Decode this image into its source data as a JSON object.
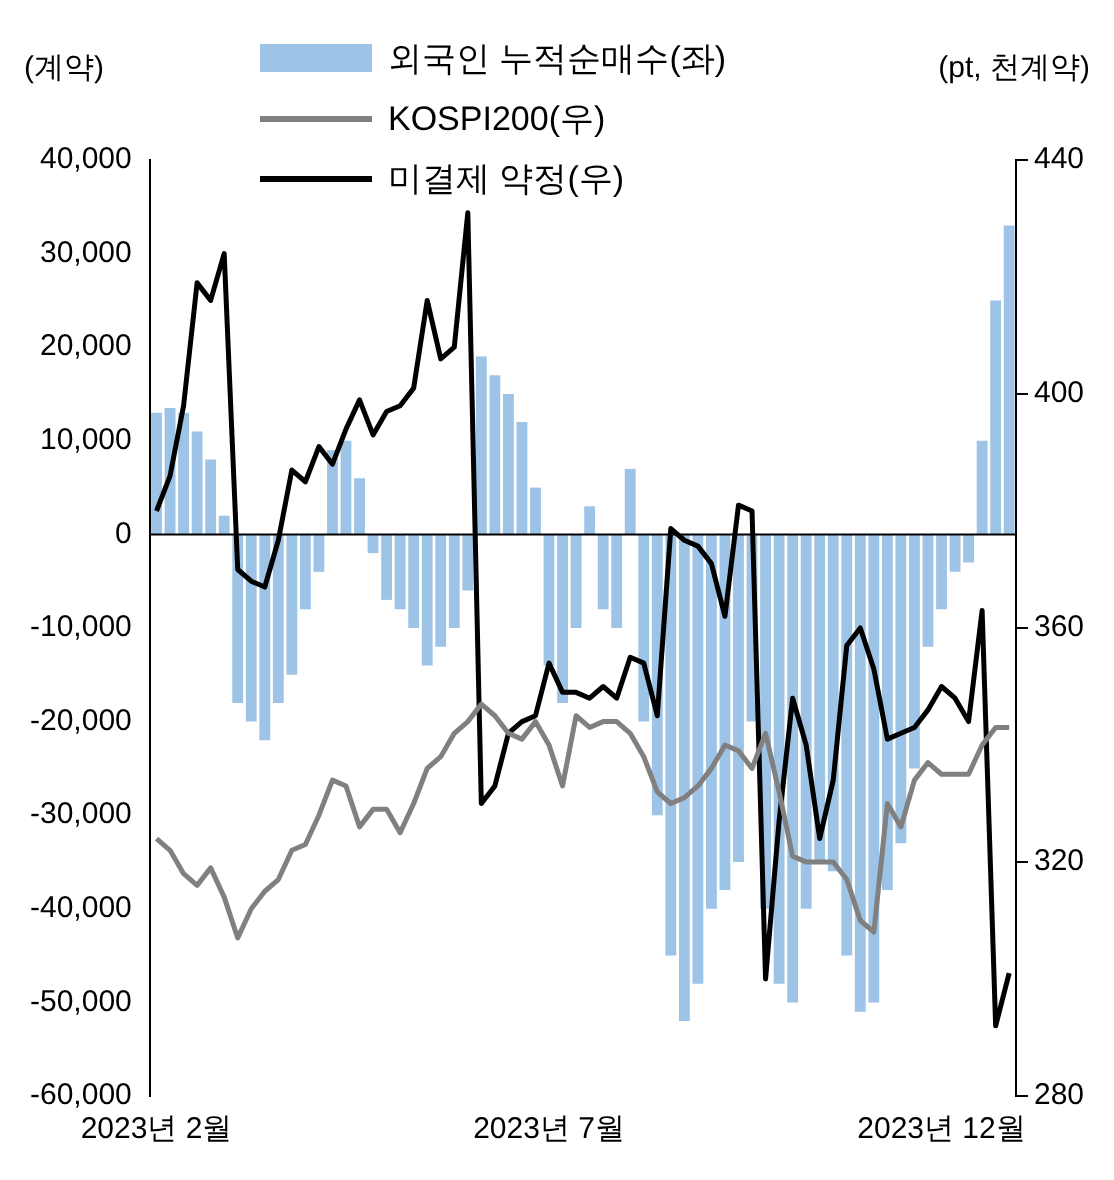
{
  "chart_data": {
    "type": "bar",
    "ylabel": "(계약)",
    "y2label": "(pt, 천계약)",
    "categories": [
      "2023년 2월",
      null,
      null,
      null,
      null,
      null,
      null,
      null,
      null,
      null,
      null,
      null,
      null,
      null,
      null,
      null,
      null,
      null,
      null,
      null,
      null,
      null,
      null,
      null,
      null,
      null,
      null,
      null,
      null,
      "2023년 7월",
      null,
      null,
      null,
      null,
      null,
      null,
      null,
      null,
      null,
      null,
      null,
      null,
      null,
      null,
      null,
      null,
      null,
      null,
      null,
      null,
      null,
      null,
      null,
      null,
      null,
      null,
      null,
      null,
      "2023년 12월",
      null,
      null,
      null,
      null,
      null
    ],
    "series": [
      {
        "name": "외국인 누적순매수(좌)",
        "color": "#9dc3e6",
        "values": [
          13000,
          13500,
          13000,
          11000,
          8000,
          2000,
          -18000,
          -20000,
          -22000,
          -18000,
          -15000,
          -8000,
          -4000,
          9000,
          10000,
          6000,
          -2000,
          -7000,
          -8000,
          -10000,
          -14000,
          -12000,
          -10000,
          -6000,
          19000,
          17000,
          15000,
          12000,
          5000,
          -14000,
          -18000,
          -10000,
          3000,
          -8000,
          -10000,
          7000,
          -20000,
          -30000,
          -45000,
          -52000,
          -48000,
          -40000,
          -38000,
          -35000,
          -20000,
          -40000,
          -48000,
          -50000,
          -40000,
          -35000,
          -36000,
          -45000,
          -51000,
          -50000,
          -38000,
          -33000,
          -25000,
          -12000,
          -8000,
          -4000,
          -3000,
          10000,
          25000,
          33000
        ]
      },
      {
        "name": "KOSPI200(우)",
        "type": "line",
        "axis": "y2",
        "color": "#808080",
        "values": [
          324,
          322,
          318,
          316,
          319,
          314,
          307,
          312,
          315,
          317,
          322,
          323,
          328,
          334,
          333,
          326,
          329,
          329,
          325,
          330,
          336,
          338,
          342,
          344,
          347,
          345,
          342,
          341,
          344,
          340,
          333,
          345,
          343,
          344,
          344,
          342,
          338,
          332,
          330,
          331,
          333,
          336,
          340,
          339,
          336,
          342,
          332,
          321,
          320,
          320,
          320,
          317,
          310,
          308,
          330,
          326,
          334,
          337,
          335,
          335,
          335,
          340,
          343,
          343
        ]
      },
      {
        "name": "미결제 약정(우)",
        "type": "line",
        "axis": "y2",
        "color": "#000000",
        "values": [
          380,
          386,
          398,
          419,
          416,
          424,
          370,
          368,
          367,
          375,
          387,
          385,
          391,
          388,
          394,
          399,
          393,
          397,
          398,
          401,
          416,
          406,
          408,
          431,
          330,
          333,
          342,
          344,
          345,
          354,
          349,
          349,
          348,
          350,
          348,
          355,
          354,
          345,
          377,
          375,
          374,
          371,
          362,
          381,
          380,
          300,
          327,
          348,
          340,
          324,
          334,
          357,
          360,
          353,
          341,
          342,
          343,
          346,
          350,
          348,
          344,
          363,
          292,
          301
        ]
      }
    ],
    "ylim": [
      -60000,
      40000
    ],
    "yticks": [
      {
        "value": -60000,
        "label": "-60,000"
      },
      {
        "value": -50000,
        "label": "-50,000"
      },
      {
        "value": -40000,
        "label": "-40,000"
      },
      {
        "value": -30000,
        "label": "-30,000"
      },
      {
        "value": -20000,
        "label": "-20,000"
      },
      {
        "value": -10000,
        "label": "-10,000"
      },
      0,
      {
        "value": 10000,
        "label": "10,000"
      },
      {
        "value": 20000,
        "label": "20,000"
      },
      {
        "value": 30000,
        "label": "30,000"
      },
      {
        "value": 40000,
        "label": "40,000"
      }
    ],
    "y2lim": [
      280,
      440
    ],
    "y2ticks": [
      280,
      320,
      360,
      400,
      440
    ],
    "ref_lines": [
      {
        "axis": "y",
        "value": 0,
        "color": "#000000"
      }
    ],
    "legend": "top",
    "grid": false,
    "marker": "none"
  }
}
